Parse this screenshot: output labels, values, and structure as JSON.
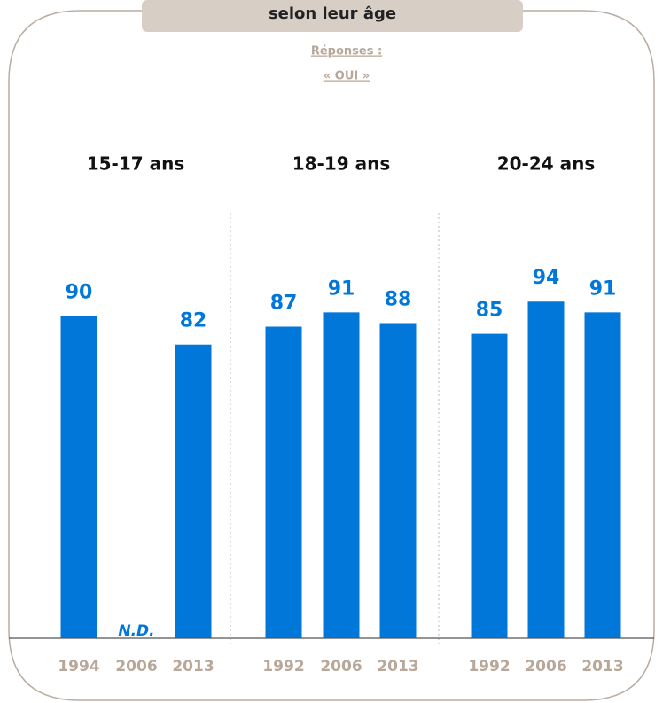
{
  "chart_data": {
    "type": "bar",
    "title": "selon leur âge",
    "subtitle": [
      "Réponses :",
      "« OUI »"
    ],
    "color": "#0077d9",
    "ylim": [
      0,
      100
    ],
    "groups": [
      {
        "name": "15-17 ans",
        "categories": [
          "1994",
          "2006",
          "2013"
        ],
        "values": [
          90,
          null,
          82
        ],
        "value_labels": [
          "90",
          "N.D.",
          "82"
        ]
      },
      {
        "name": "18-19 ans",
        "categories": [
          "1992",
          "2006",
          "2013"
        ],
        "values": [
          87,
          91,
          88
        ]
      },
      {
        "name": "20-24 ans",
        "categories": [
          "1992",
          "2006",
          "2013"
        ],
        "values": [
          85,
          94,
          91
        ]
      }
    ]
  }
}
